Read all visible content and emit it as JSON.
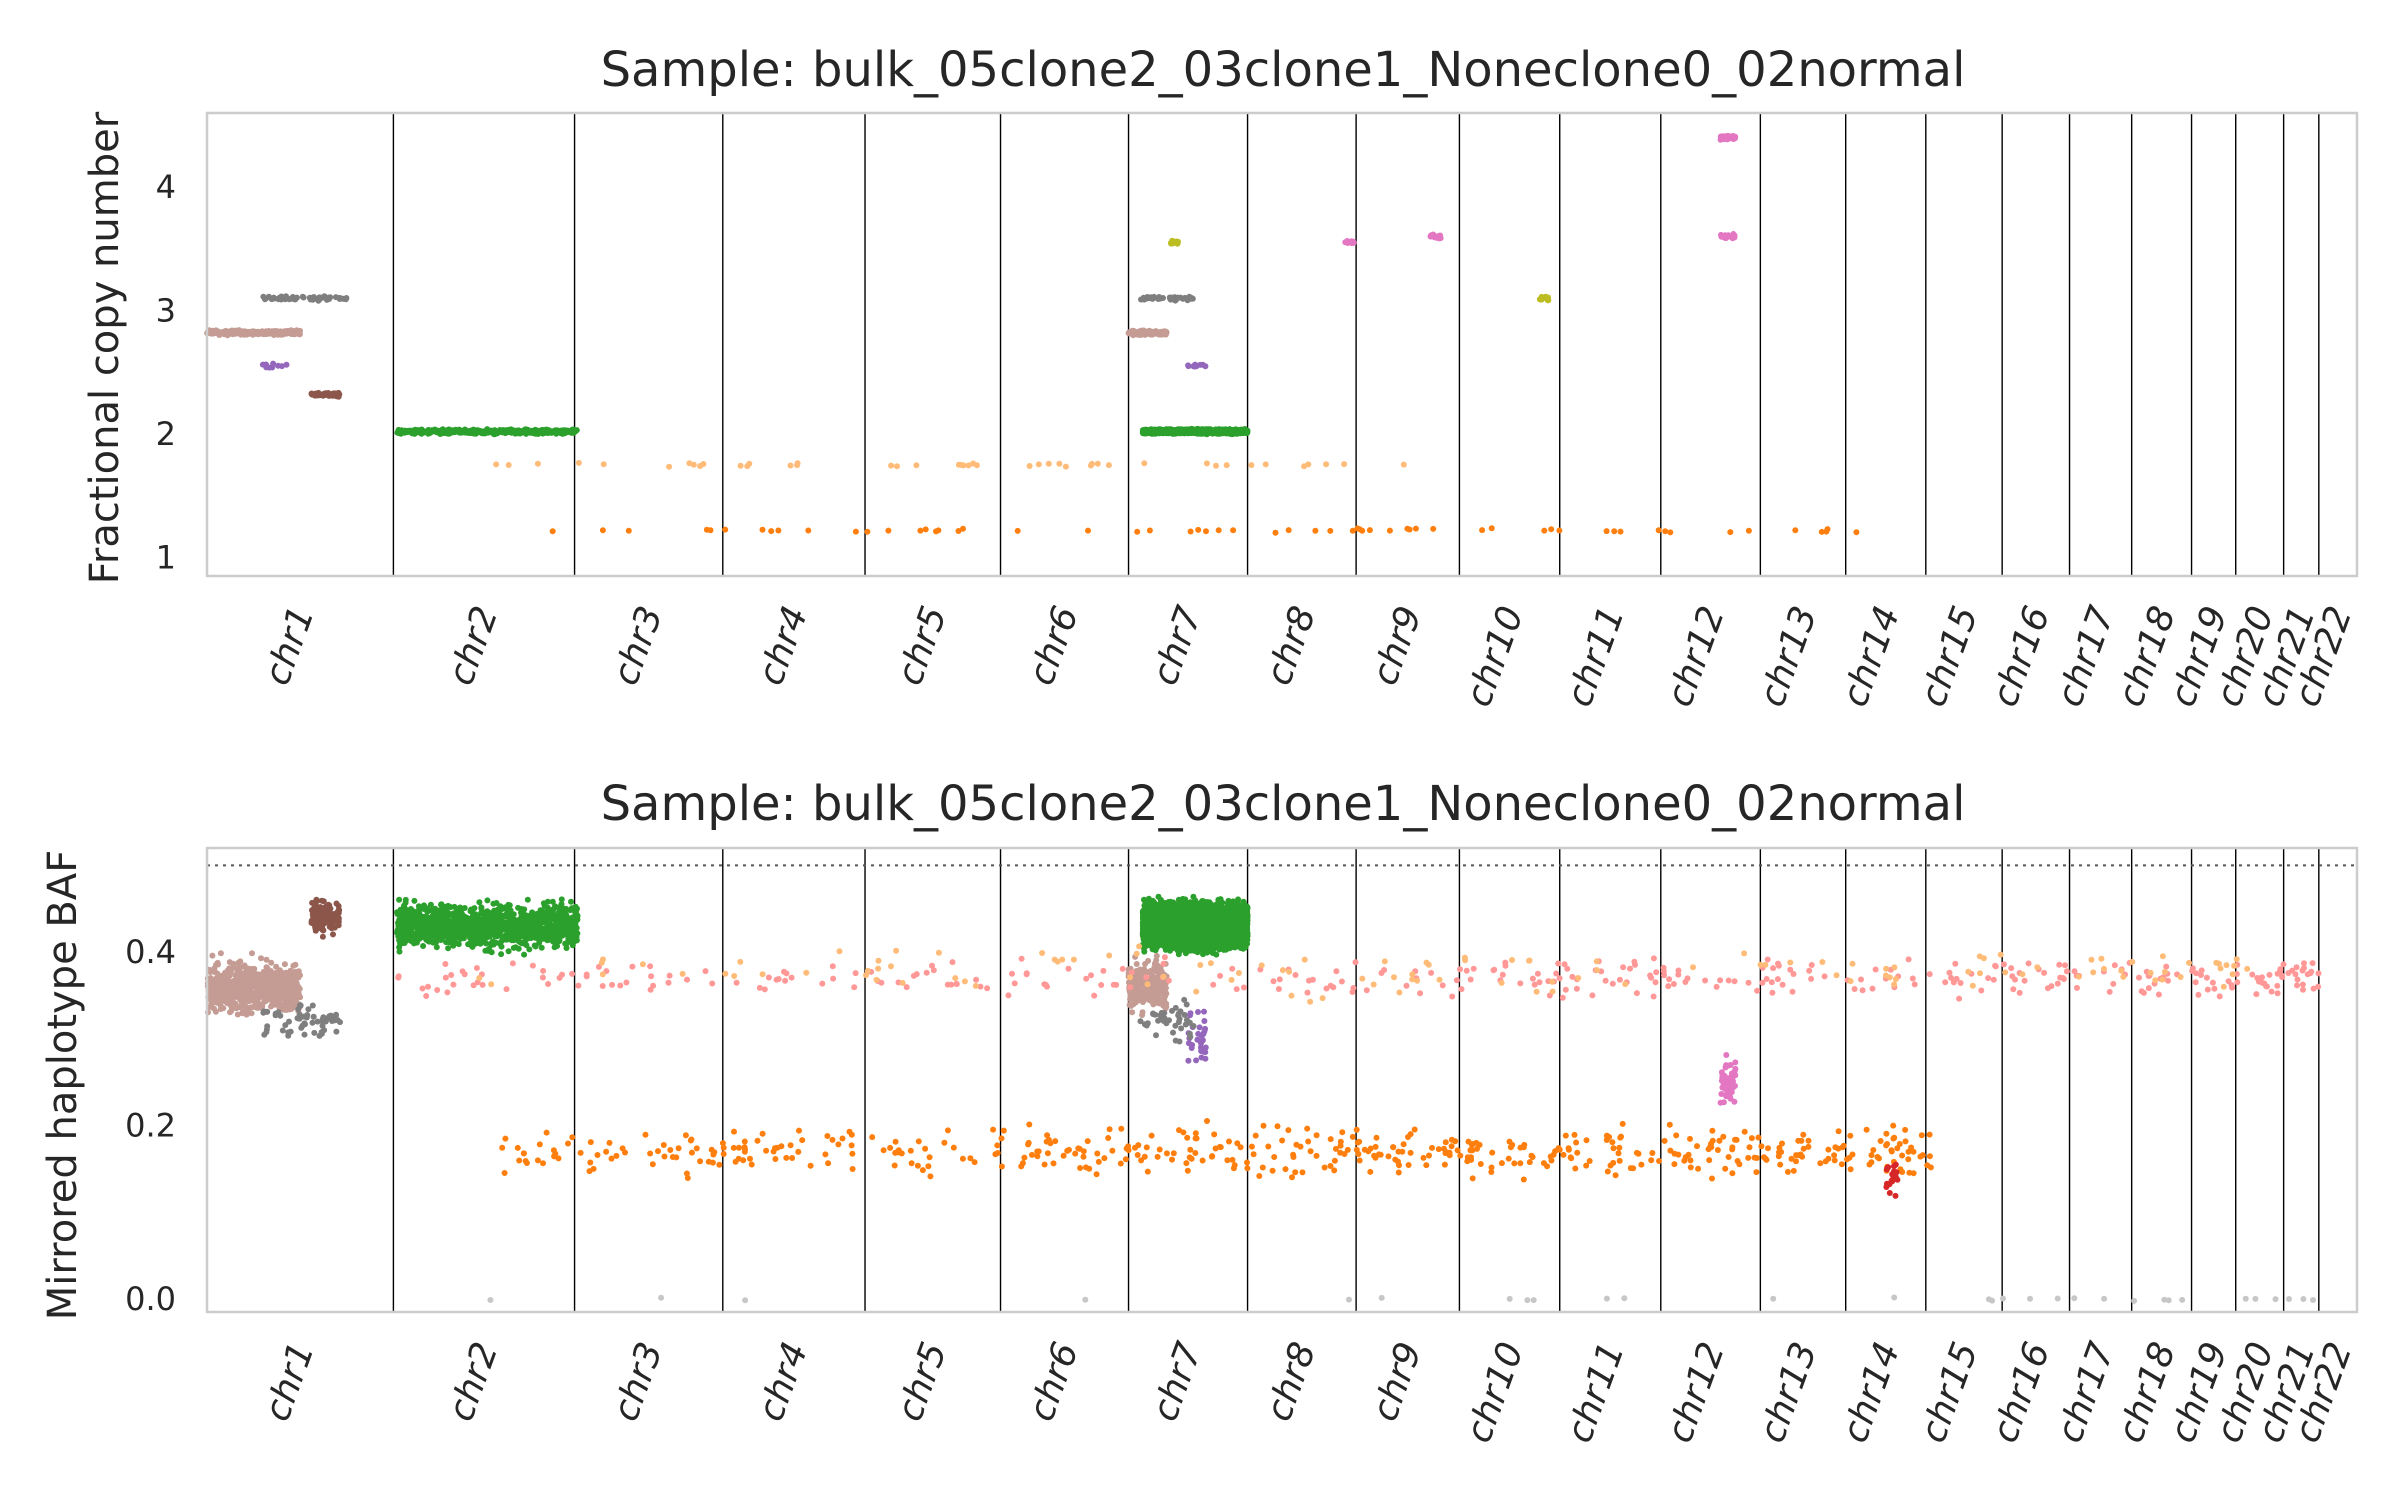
{
  "chart_data": [
    {
      "type": "scatter",
      "title": "Sample: bulk_05clone2_03clone1_Noneclone0_02normal",
      "ylabel": "Fractional copy number",
      "xlabel": "",
      "ylim": [
        0.85,
        4.6
      ],
      "yticks": [
        1,
        2,
        3,
        4
      ],
      "grid": false,
      "legend": "none",
      "chromosomes": [
        "chr1",
        "chr2",
        "chr3",
        "chr4",
        "chr5",
        "chr6",
        "chr7",
        "chr8",
        "chr9",
        "chr10",
        "chr11",
        "chr12",
        "chr13",
        "chr14",
        "chr15",
        "chr16",
        "chr17",
        "chr18",
        "chr19",
        "chr20",
        "chr21",
        "chr22"
      ],
      "chromosome_sizes": [
        249,
        242,
        198,
        190,
        181,
        171,
        159,
        145,
        138,
        134,
        135,
        133,
        114,
        107,
        102,
        90,
        83,
        80,
        59,
        64,
        47,
        51
      ],
      "series": [
        {
          "color": "#2ca02c",
          "segments": [
            {
              "x": [
                1.02,
                1.0
              ],
              "y": 2.02,
              "n": 400
            },
            {
              "x": [
                6.12,
                0.88
              ],
              "y": 2.02,
              "n": 1400
            }
          ]
        },
        {
          "color": "#c49c94",
          "segments": [
            {
              "x": [
                0.0,
                0.5
              ],
              "y": 2.82,
              "n": 260
            },
            {
              "x": [
                6.0,
                0.32
              ],
              "y": 2.82,
              "n": 120
            }
          ]
        },
        {
          "color": "#8c564b",
          "segments": [
            {
              "x": [
                0.56,
                0.15
              ],
              "y": 2.32,
              "n": 50
            }
          ]
        },
        {
          "color": "#7f7f7f",
          "segments": [
            {
              "x": [
                0.3,
                0.45
              ],
              "y": 3.1,
              "n": 60
            },
            {
              "x": [
                6.1,
                0.45
              ],
              "y": 3.1,
              "n": 40
            }
          ]
        },
        {
          "color": "#e377c2",
          "segments": [
            {
              "x": [
                11.6,
                0.15
              ],
              "y": 4.4,
              "n": 40
            },
            {
              "x": [
                11.6,
                0.15
              ],
              "y": 3.6,
              "n": 25
            },
            {
              "x": [
                8.72,
                0.1
              ],
              "y": 3.6,
              "n": 20
            },
            {
              "x": [
                7.9,
                0.1
              ],
              "y": 3.55,
              "n": 15
            }
          ]
        },
        {
          "color": "#ffbb78",
          "segments": [
            {
              "x": [
                1.5,
                7.0
              ],
              "y": 1.75,
              "n": 45
            }
          ]
        },
        {
          "color": "#ff7f0e",
          "segments": [
            {
              "x": [
                1.6,
                12.5
              ],
              "y": 1.22,
              "n": 60
            }
          ]
        },
        {
          "color": "#bcbd22",
          "segments": [
            {
              "x": [
                6.35,
                0.1
              ],
              "y": 3.55,
              "n": 12
            },
            {
              "x": [
                9.8,
                0.1
              ],
              "y": 3.1,
              "n": 10
            }
          ]
        },
        {
          "color": "#9467bd",
          "segments": [
            {
              "x": [
                0.3,
                0.15
              ],
              "y": 2.55,
              "n": 10
            },
            {
              "x": [
                6.5,
                0.15
              ],
              "y": 2.55,
              "n": 10
            }
          ]
        }
      ]
    },
    {
      "type": "scatter",
      "title": "Sample: bulk_05clone2_03clone1_Noneclone0_02normal",
      "ylabel": "Mirrored haplotype BAF",
      "xlabel": "",
      "ylim": [
        -0.015,
        0.52
      ],
      "yticks": [
        0.0,
        0.2,
        0.4
      ],
      "ytick_labels": [
        "0.0",
        "0.2",
        "0.4"
      ],
      "reference_line": 0.5,
      "grid": false,
      "legend": "none",
      "chromosomes": [
        "chr1",
        "chr2",
        "chr3",
        "chr4",
        "chr5",
        "chr6",
        "chr7",
        "chr8",
        "chr9",
        "chr10",
        "chr11",
        "chr12",
        "chr13",
        "chr14",
        "chr15",
        "chr16",
        "chr17",
        "chr18",
        "chr19",
        "chr20",
        "chr21",
        "chr22"
      ],
      "series": [
        {
          "color": "#2ca02c",
          "segments": [
            {
              "x": [
                1.02,
                1.0
              ],
              "y": 0.43,
              "spread": 0.035,
              "n": 1200
            },
            {
              "x": [
                6.12,
                0.88
              ],
              "y": 0.43,
              "spread": 0.035,
              "n": 5200
            }
          ]
        },
        {
          "color": "#c49c94",
          "segments": [
            {
              "x": [
                0.0,
                0.5
              ],
              "y": 0.36,
              "spread": 0.04,
              "n": 600
            },
            {
              "x": [
                6.0,
                0.32
              ],
              "y": 0.36,
              "spread": 0.04,
              "n": 250
            }
          ]
        },
        {
          "color": "#8c564b",
          "segments": [
            {
              "x": [
                0.56,
                0.15
              ],
              "y": 0.44,
              "spread": 0.025,
              "n": 120
            }
          ]
        },
        {
          "color": "#ff9896",
          "segments": [
            {
              "x": [
                1.0,
                20.0
              ],
              "y": 0.37,
              "spread": 0.03,
              "n": 350
            }
          ]
        },
        {
          "color": "#ffbb78",
          "segments": [
            {
              "x": [
                1.4,
                18.0
              ],
              "y": 0.38,
              "spread": 0.04,
              "n": 120
            }
          ]
        },
        {
          "color": "#ff7f0e",
          "segments": [
            {
              "x": [
                1.6,
                12.5
              ],
              "y": 0.17,
              "spread": 0.04,
              "n": 500
            }
          ]
        },
        {
          "color": "#e377c2",
          "segments": [
            {
              "x": [
                11.6,
                0.15
              ],
              "y": 0.25,
              "spread": 0.035,
              "n": 60
            }
          ]
        },
        {
          "color": "#9467bd",
          "segments": [
            {
              "x": [
                6.5,
                0.15
              ],
              "y": 0.3,
              "spread": 0.05,
              "n": 30
            }
          ]
        },
        {
          "color": "#7f7f7f",
          "segments": [
            {
              "x": [
                0.3,
                0.45
              ],
              "y": 0.32,
              "spread": 0.03,
              "n": 60
            },
            {
              "x": [
                6.1,
                0.45
              ],
              "y": 0.32,
              "spread": 0.03,
              "n": 40
            }
          ]
        },
        {
          "color": "#d62728",
          "segments": [
            {
              "x": [
                13.5,
                0.15
              ],
              "y": 0.14,
              "spread": 0.03,
              "n": 20
            }
          ]
        },
        {
          "color": "#c7c7c7",
          "segments": [
            {
              "x": [
                0.5,
                20.5
              ],
              "y": 0.0,
              "spread": 0.003,
              "n": 30
            }
          ]
        }
      ]
    }
  ]
}
